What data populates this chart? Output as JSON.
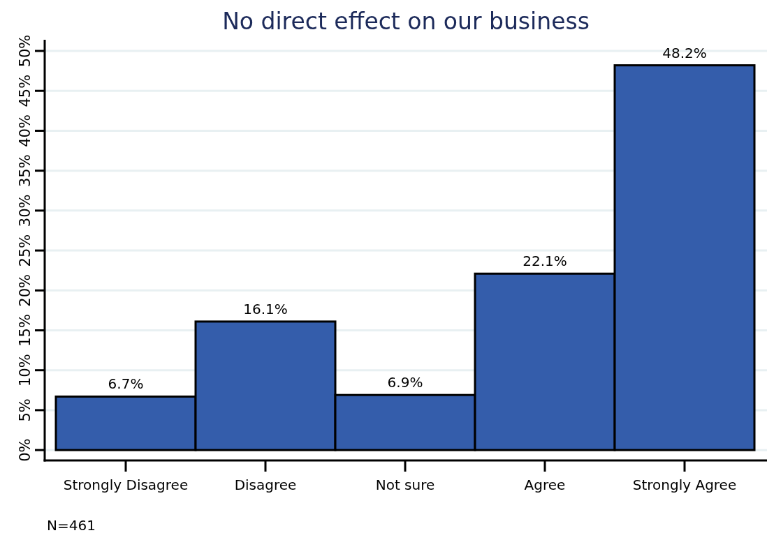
{
  "chart_data": {
    "type": "bar",
    "title": "No direct effect on our business",
    "categories": [
      "Strongly Disagree",
      "Disagree",
      "Not sure",
      "Agree",
      "Strongly Agree"
    ],
    "values": [
      6.7,
      16.1,
      6.9,
      22.1,
      48.2
    ],
    "color": "#345dab",
    "value_labels": [
      "6.7%",
      "16.1%",
      "6.9%",
      "22.1%",
      "48.2%"
    ],
    "ylim": [
      -1.3,
      51.4
    ],
    "yticks": [
      {
        "value": 0,
        "label": "0%"
      },
      {
        "value": 5,
        "label": "5%"
      },
      {
        "value": 10,
        "label": "10%"
      },
      {
        "value": 15,
        "label": "15%"
      },
      {
        "value": 20,
        "label": "20%"
      },
      {
        "value": 25,
        "label": "25%"
      },
      {
        "value": 30,
        "label": "30%"
      },
      {
        "value": 35,
        "label": "35%"
      },
      {
        "value": 40,
        "label": "40%"
      },
      {
        "value": 45,
        "label": "45%"
      },
      {
        "value": 50,
        "label": "50%"
      }
    ],
    "grid": "y",
    "annotations": [
      "N=461"
    ]
  }
}
